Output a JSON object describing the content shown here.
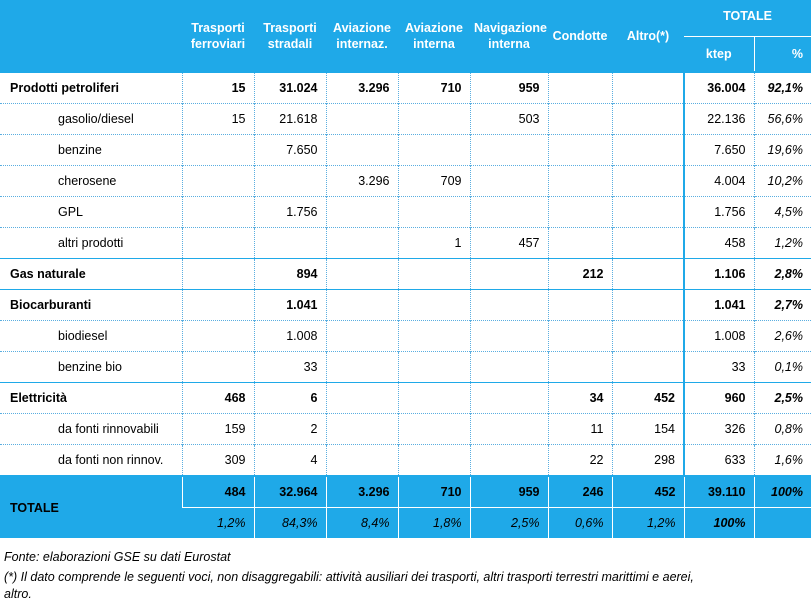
{
  "header": {
    "cols": [
      {
        "l1": "Trasporti",
        "l2": "ferroviari"
      },
      {
        "l1": "Trasporti",
        "l2": "stradali"
      },
      {
        "l1": "Aviazione",
        "l2": "internaz."
      },
      {
        "l1": "Aviazione",
        "l2": "interna"
      },
      {
        "l1": "Navigazione",
        "l2": "interna"
      },
      {
        "l1": "Condotte",
        "l2": ""
      },
      {
        "l1": "Altro(*)",
        "l2": ""
      }
    ],
    "totale": "TOTALE",
    "ktep": "ktep",
    "pct": "%"
  },
  "rows": [
    {
      "label": "Prodotti petroliferi",
      "v": [
        "15",
        "31.024",
        "3.296",
        "710",
        "959",
        "",
        ""
      ],
      "ktep": "36.004",
      "pct": "92,1%"
    },
    {
      "label": "gasolio/diesel",
      "v": [
        "15",
        "21.618",
        "",
        "",
        "503",
        "",
        ""
      ],
      "ktep": "22.136",
      "pct": "56,6%"
    },
    {
      "label": "benzine",
      "v": [
        "",
        "7.650",
        "",
        "",
        "",
        "",
        ""
      ],
      "ktep": "7.650",
      "pct": "19,6%"
    },
    {
      "label": "cherosene",
      "v": [
        "",
        "",
        "3.296",
        "709",
        "",
        "",
        ""
      ],
      "ktep": "4.004",
      "pct": "10,2%"
    },
    {
      "label": "GPL",
      "v": [
        "",
        "1.756",
        "",
        "",
        "",
        "",
        ""
      ],
      "ktep": "1.756",
      "pct": "4,5%"
    },
    {
      "label": "altri prodotti",
      "v": [
        "",
        "",
        "",
        "1",
        "457",
        "",
        ""
      ],
      "ktep": "458",
      "pct": "1,2%"
    },
    {
      "label": "Gas naturale",
      "v": [
        "",
        "894",
        "",
        "",
        "",
        "212",
        ""
      ],
      "ktep": "1.106",
      "pct": "2,8%"
    },
    {
      "label": "Biocarburanti",
      "v": [
        "",
        "1.041",
        "",
        "",
        "",
        "",
        ""
      ],
      "ktep": "1.041",
      "pct": "2,7%"
    },
    {
      "label": "biodiesel",
      "v": [
        "",
        "1.008",
        "",
        "",
        "",
        "",
        ""
      ],
      "ktep": "1.008",
      "pct": "2,6%"
    },
    {
      "label": "benzine bio",
      "v": [
        "",
        "33",
        "",
        "",
        "",
        "",
        ""
      ],
      "ktep": "33",
      "pct": "0,1%"
    },
    {
      "label": "Elettricità",
      "v": [
        "468",
        "6",
        "",
        "",
        "",
        "34",
        "452"
      ],
      "ktep": "960",
      "pct": "2,5%"
    },
    {
      "label": "da fonti rinnovabili",
      "v": [
        "159",
        "2",
        "",
        "",
        "",
        "11",
        "154"
      ],
      "ktep": "326",
      "pct": "0,8%"
    },
    {
      "label": "da fonti non rinnov.",
      "v": [
        "309",
        "4",
        "",
        "",
        "",
        "22",
        "298"
      ],
      "ktep": "633",
      "pct": "1,6%"
    }
  ],
  "totale": {
    "label": "TOTALE",
    "v": [
      "484",
      "32.964",
      "3.296",
      "710",
      "959",
      "246",
      "452"
    ],
    "ktep": "39.110",
    "pct": "100%",
    "shares": [
      "1,2%",
      "84,3%",
      "8,4%",
      "1,8%",
      "2,5%",
      "0,6%",
      "1,2%"
    ],
    "share_total": "100%"
  },
  "footer": {
    "source": "Fonte: elaborazioni GSE su dati Eurostat",
    "note1": "(*) Il dato comprende le seguenti voci, non disaggregabili: attività ausiliari dei trasporti, altri trasporti terrestri marittimi e aerei,",
    "note2": "altro."
  }
}
